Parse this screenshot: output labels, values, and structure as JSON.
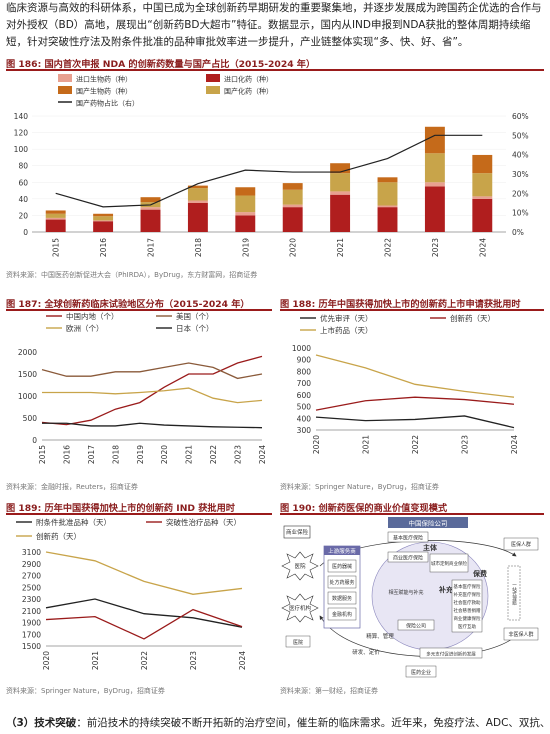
{
  "intro": {
    "line1": "临床资源与高效的科研体系，中国已成为全球创新药早期研发的重要聚集地，并逐步发展成为跨国药企优选的合作与",
    "line2": "对外授权（BD）高地，展现出“创新药BD大超市”特征。数据显示，国内从IND申报到NDA获批的整体周期持续缩",
    "line3": "短，针对突破性疗法及附条件批准的品种审批效率进一步提升，产业链整体实现“多、快、好、省”。"
  },
  "fig186": {
    "num": "图 186:",
    "title": "国内首次申报 NDA 的创新药数量与国产占比（2015-2024 年）",
    "source": "资料来源：中国医药创新促进大会（PhIRDA），ByDrug，东方财富网，招商证券",
    "colors": {
      "import_bio": "#e8a090",
      "import_chem": "#b01e1e",
      "domestic_bio": "#c56a1a",
      "domestic_chem": "#c8a44a",
      "ratio": "#222222"
    }
  },
  "fig187": {
    "num": "图 187:",
    "title": "全球创新药临床试验地区分布（2015-2024 年）",
    "source": "资料来源：金融时报，Reuters，招商证券"
  },
  "fig188": {
    "num": "图 188:",
    "title": "历年中国获得加快上市的创新药上市申请获批用时",
    "source": "资料来源：Springer Nature，ByDrug，招商证券"
  },
  "fig189": {
    "num": "图 189:",
    "title": "历年中国获得加快上市的创新药 IND 获批用时",
    "source": "资料来源：Springer Nature，ByDrug，招商证券"
  },
  "fig190": {
    "num": "图 190:",
    "title": "创新药医保的商业价值变现模式",
    "source": "资料来源：第一财经，招商证券",
    "labels": {
      "top": "中国保险公司",
      "left_box": "上游服务商",
      "hospital": "医疗机构",
      "insurer_box": "保险公司",
      "main": "主体",
      "basic": "基本医疗保险",
      "commercial": "商业医疗保险",
      "city": "城市定制商业保险",
      "mutual": "相互赋能与补充",
      "drug": "医药器械",
      "pbm": "处方药服务",
      "data": "数据服务",
      "finance": "金融机构",
      "baofe": "保费",
      "buchong": "补充",
      "p1": "基本医疗保险",
      "p2": "补充医疗保险",
      "p3": "社会医疗救助",
      "p4": "社会慈善捐赠",
      "p5": "商业健康保险",
      "p6": "医疗互助",
      "jingsuan": "精算、管理",
      "yanfa": "研发、定价",
      "multi": "多元支付促进创新药发展",
      "right1": "医保人群",
      "right2": "一站式理赔",
      "right3": "非医保人群",
      "yiyuan": "医院",
      "yaoqi": "医药企业",
      "shangye": "商业保险"
    }
  },
  "chart_data": [
    {
      "type": "bar",
      "id": "fig186",
      "categories": [
        "2015",
        "2016",
        "2017",
        "2018",
        "2019",
        "2020",
        "2021",
        "2022",
        "2023",
        "2024"
      ],
      "series": [
        {
          "name": "进口生物药（种）",
          "values": [
            2,
            1,
            3,
            3,
            4,
            3,
            4,
            2,
            5,
            3
          ]
        },
        {
          "name": "进口化药（种）",
          "values": [
            15,
            13,
            27,
            35,
            20,
            30,
            45,
            30,
            55,
            40
          ]
        },
        {
          "name": "国产生物药（种）",
          "values": [
            4,
            3,
            6,
            3,
            10,
            8,
            12,
            6,
            32,
            22
          ]
        },
        {
          "name": "国产化药（种）",
          "values": [
            5,
            5,
            6,
            15,
            20,
            18,
            22,
            28,
            35,
            28
          ]
        },
        {
          "name": "国产药物占比（右）",
          "values": [
            0.2,
            0.13,
            0.14,
            0.25,
            0.32,
            0.31,
            0.31,
            0.38,
            0.5,
            0.5
          ]
        }
      ],
      "ylim": [
        0,
        140
      ],
      "y2lim": [
        0,
        0.6
      ],
      "yticks": [
        "0",
        "20",
        "40",
        "60",
        "80",
        "100",
        "120",
        "140"
      ],
      "y2ticks": [
        "0%",
        "10%",
        "20%",
        "30%",
        "40%",
        "50%",
        "60%"
      ]
    },
    {
      "type": "line",
      "id": "fig187",
      "categories": [
        "2015",
        "2016",
        "2017",
        "2018",
        "2019",
        "2020",
        "2021",
        "2022",
        "2023",
        "2024"
      ],
      "series": [
        {
          "name": "中国内地（个）",
          "values": [
            400,
            350,
            450,
            700,
            850,
            1200,
            1500,
            1500,
            1750,
            1900
          ]
        },
        {
          "name": "美国（个）",
          "values": [
            1600,
            1450,
            1450,
            1550,
            1550,
            1650,
            1750,
            1650,
            1400,
            1500
          ]
        },
        {
          "name": "欧洲（个）",
          "values": [
            1080,
            1080,
            1080,
            1050,
            1080,
            1120,
            1180,
            950,
            850,
            900
          ]
        },
        {
          "name": "日本（个）",
          "values": [
            380,
            380,
            320,
            320,
            380,
            340,
            320,
            300,
            290,
            280
          ]
        }
      ],
      "ylim": [
        0,
        2000
      ],
      "yticks": [
        "0",
        "500",
        "1000",
        "1500",
        "2000"
      ]
    },
    {
      "type": "line",
      "id": "fig188",
      "categories": [
        "2020",
        "2021",
        "2022",
        "2023",
        "2024"
      ],
      "series": [
        {
          "name": "优先审评（天）",
          "values": [
            410,
            380,
            390,
            420,
            320
          ]
        },
        {
          "name": "创新药（天）",
          "values": [
            470,
            550,
            580,
            560,
            520
          ]
        },
        {
          "name": "上市药品（天）",
          "values": [
            940,
            830,
            690,
            630,
            580
          ]
        }
      ],
      "ylim": [
        300,
        1000
      ],
      "yticks": [
        "300",
        "400",
        "500",
        "600",
        "700",
        "800",
        "900",
        "1000"
      ]
    },
    {
      "type": "line",
      "id": "fig189",
      "categories": [
        "2020",
        "2021",
        "2022",
        "2023",
        "2024"
      ],
      "series": [
        {
          "name": "附条件批准品种（天）",
          "values": [
            2150,
            2300,
            2050,
            1980,
            1820
          ]
        },
        {
          "name": "突破性治疗品种（天）",
          "values": [
            1950,
            2000,
            1620,
            2120,
            1830
          ]
        },
        {
          "name": "创新药（天）",
          "values": [
            3100,
            2950,
            2600,
            2380,
            2480
          ]
        }
      ],
      "ylim": [
        1500,
        3100
      ],
      "yticks": [
        "1500",
        "1700",
        "1900",
        "2100",
        "2300",
        "2500",
        "2700",
        "2900",
        "3100"
      ]
    }
  ],
  "bottom": {
    "head": "（3）技术突破",
    "text": "：前沿技术的持续突破不断开拓新的治疗空间，催生新的临床需求。近年来，免疫疗法、ADC、双抗、"
  }
}
